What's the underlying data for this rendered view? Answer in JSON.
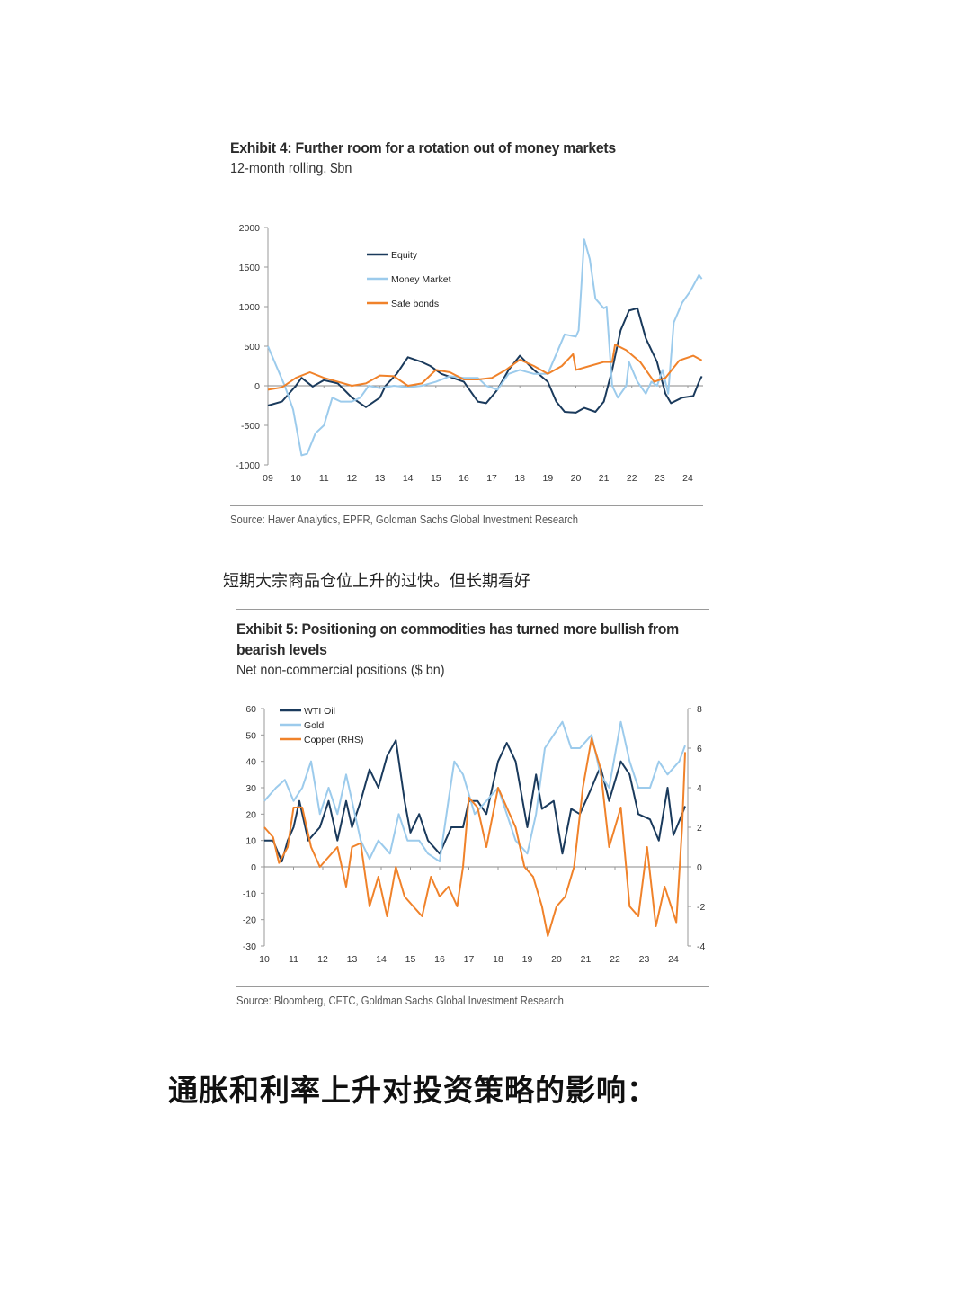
{
  "exhibit4": {
    "title": "Exhibit 4: Further room for a rotation out of money markets",
    "subtitle": "12-month rolling, $bn",
    "source": "Source: Haver Analytics, EPFR, Goldman Sachs Global Investment Research"
  },
  "between_text": "短期大宗商品仓位上升的过快。但长期看好",
  "exhibit5": {
    "title_line1": "Exhibit 5: Positioning on commodities has turned more bullish from",
    "title_line2": "bearish levels",
    "subtitle": "Net non-commercial positions ($ bn)",
    "source": "Source: Bloomberg, CFTC, Goldman Sachs Global Investment Research"
  },
  "heading": "通胀和利率上升对投资策略的影响：",
  "chart_data": [
    {
      "type": "line",
      "title": "Exhibit 4: Further room for a rotation out of money markets",
      "ylim": [
        -1000,
        2000
      ],
      "yticks": [
        "2000",
        "1500",
        "1000",
        "500",
        "0",
        "-500",
        "-1000"
      ],
      "ytick_values": [
        2000,
        1500,
        1000,
        500,
        0,
        -500,
        -1000
      ],
      "xticks": [
        "09",
        "10",
        "11",
        "12",
        "13",
        "14",
        "15",
        "16",
        "17",
        "18",
        "19",
        "20",
        "21",
        "22",
        "23",
        "24"
      ],
      "xlim": [
        2009,
        2024
      ],
      "grid": false,
      "legend_placement": "top-left",
      "series": [
        {
          "name": "Equity",
          "color": "#1a3a5c",
          "x": [
            2009,
            2009.5,
            2010,
            2010.2,
            2010.6,
            2011,
            2011.5,
            2012,
            2012.5,
            2013,
            2013.2,
            2013.6,
            2014,
            2014.5,
            2014.8,
            2015.2,
            2015.6,
            2016,
            2016.5,
            2016.8,
            2017.2,
            2017.6,
            2018,
            2018.5,
            2019,
            2019.3,
            2019.6,
            2020,
            2020.3,
            2020.7,
            2021,
            2021.3,
            2021.6,
            2021.9,
            2022.2,
            2022.5,
            2022.9,
            2023.2,
            2023.4,
            2023.8,
            2024.2,
            2024.4,
            2024.5
          ],
          "y": [
            -250,
            -200,
            0,
            100,
            -10,
            70,
            30,
            -150,
            -270,
            -150,
            0,
            150,
            360,
            300,
            250,
            150,
            100,
            50,
            -200,
            -220,
            -50,
            200,
            380,
            200,
            50,
            -200,
            -330,
            -340,
            -280,
            -330,
            -200,
            200,
            700,
            950,
            980,
            600,
            300,
            -100,
            -220,
            -150,
            -130,
            50,
            120
          ]
        },
        {
          "name": "Money Market",
          "color": "#9ccbec",
          "x": [
            2009,
            2009.3,
            2009.6,
            2009.9,
            2010.2,
            2010.4,
            2010.7,
            2011,
            2011.3,
            2011.6,
            2012,
            2012.3,
            2012.6,
            2013,
            2013.5,
            2014,
            2014.5,
            2015,
            2015.5,
            2016,
            2016.5,
            2016.8,
            2017.2,
            2017.6,
            2018,
            2018.5,
            2019,
            2019.3,
            2019.6,
            2020,
            2020.1,
            2020.3,
            2020.5,
            2020.7,
            2021,
            2021.1,
            2021.3,
            2021.5,
            2021.8,
            2021.9,
            2022.2,
            2022.5,
            2022.7,
            2022.9,
            2023.1,
            2023.3,
            2023.5,
            2023.8,
            2024.1,
            2024.4,
            2024.5
          ],
          "y": [
            500,
            250,
            0,
            -300,
            -880,
            -860,
            -600,
            -500,
            -150,
            -200,
            -200,
            -150,
            0,
            -30,
            0,
            -20,
            0,
            50,
            120,
            100,
            100,
            0,
            -50,
            150,
            200,
            150,
            150,
            400,
            650,
            620,
            700,
            1850,
            1600,
            1100,
            980,
            1000,
            0,
            -150,
            0,
            300,
            50,
            -100,
            50,
            0,
            200,
            -100,
            800,
            1050,
            1200,
            1400,
            1350
          ]
        },
        {
          "name": "Safe bonds",
          "color": "#f0822a",
          "x": [
            2009,
            2009.5,
            2010,
            2010.5,
            2011,
            2011.5,
            2012,
            2012.5,
            2013,
            2013.5,
            2014,
            2014.5,
            2015,
            2015.5,
            2016,
            2016.5,
            2017,
            2017.5,
            2018,
            2018.5,
            2019,
            2019.5,
            2019.9,
            2020,
            2020.5,
            2021,
            2021.3,
            2021.4,
            2021.8,
            2022.3,
            2022.8,
            2023.2,
            2023.7,
            2024.2,
            2024.5
          ],
          "y": [
            -50,
            -20,
            100,
            170,
            100,
            50,
            0,
            30,
            130,
            120,
            0,
            30,
            200,
            170,
            80,
            80,
            100,
            200,
            330,
            250,
            150,
            250,
            400,
            200,
            250,
            300,
            300,
            520,
            450,
            300,
            50,
            100,
            320,
            380,
            320
          ]
        }
      ]
    },
    {
      "type": "line",
      "title": "Exhibit 5: Positioning on commodities has turned more bullish from bearish levels",
      "ylim": [
        -30,
        60
      ],
      "y2lim": [
        -4,
        8
      ],
      "yticks": [
        "60",
        "50",
        "40",
        "30",
        "20",
        "10",
        "0",
        "-10",
        "-20",
        "-30"
      ],
      "ytick_values": [
        60,
        50,
        40,
        30,
        20,
        10,
        0,
        -10,
        -20,
        -30
      ],
      "y2ticks": [
        "8",
        "6",
        "4",
        "2",
        "0",
        "-2",
        "-4"
      ],
      "y2tick_values": [
        8,
        6,
        4,
        2,
        0,
        -2,
        -4
      ],
      "xticks": [
        "10",
        "11",
        "12",
        "13",
        "14",
        "15",
        "16",
        "17",
        "18",
        "19",
        "20",
        "21",
        "22",
        "23",
        "24"
      ],
      "xlim": [
        2010,
        2024
      ],
      "grid": false,
      "legend_placement": "top-left",
      "series": [
        {
          "name": "WTI Oil",
          "color": "#1a3a5c",
          "axis": "left",
          "x": [
            2010,
            2010.3,
            2010.6,
            2010.8,
            2011,
            2011.2,
            2011.5,
            2011.9,
            2012.2,
            2012.5,
            2012.8,
            2013,
            2013.3,
            2013.6,
            2013.9,
            2014.2,
            2014.5,
            2014.8,
            2015,
            2015.3,
            2015.6,
            2016,
            2016.4,
            2016.8,
            2017,
            2017.3,
            2017.6,
            2018,
            2018.3,
            2018.6,
            2019,
            2019.3,
            2019.5,
            2019.9,
            2020.2,
            2020.5,
            2020.8,
            2021.2,
            2021.5,
            2021.8,
            2022.2,
            2022.5,
            2022.8,
            2023.2,
            2023.5,
            2023.8,
            2024,
            2024.3,
            2024.4
          ],
          "y": [
            10,
            10,
            2,
            10,
            15,
            25,
            10,
            15,
            25,
            10,
            25,
            15,
            25,
            37,
            30,
            42,
            48,
            25,
            13,
            20,
            10,
            5,
            15,
            15,
            25,
            25,
            20,
            40,
            47,
            40,
            15,
            35,
            22,
            25,
            5,
            22,
            20,
            30,
            38,
            25,
            40,
            35,
            20,
            18,
            10,
            30,
            12,
            20,
            23
          ]
        },
        {
          "name": "Gold",
          "color": "#9ccbec",
          "axis": "left",
          "x": [
            2010,
            2010.4,
            2010.7,
            2011,
            2011.3,
            2011.6,
            2011.9,
            2012.2,
            2012.5,
            2012.8,
            2013,
            2013.3,
            2013.6,
            2013.9,
            2014.3,
            2014.6,
            2014.9,
            2015.3,
            2015.6,
            2016,
            2016.3,
            2016.5,
            2016.8,
            2017.2,
            2017.6,
            2018,
            2018.3,
            2018.6,
            2019,
            2019.3,
            2019.6,
            2019.9,
            2020.2,
            2020.5,
            2020.8,
            2021.2,
            2021.5,
            2021.8,
            2022.2,
            2022.5,
            2022.8,
            2023.2,
            2023.5,
            2023.8,
            2024.2,
            2024.4
          ],
          "y": [
            25,
            30,
            33,
            25,
            30,
            40,
            20,
            30,
            20,
            35,
            25,
            10,
            3,
            10,
            5,
            20,
            10,
            10,
            5,
            2,
            25,
            40,
            35,
            20,
            25,
            30,
            20,
            10,
            5,
            20,
            45,
            50,
            55,
            45,
            45,
            50,
            35,
            30,
            55,
            40,
            30,
            30,
            40,
            35,
            40,
            46
          ]
        },
        {
          "name": "Copper (RHS)",
          "color": "#f0822a",
          "axis": "right",
          "x": [
            2010,
            2010.3,
            2010.5,
            2010.8,
            2011,
            2011.3,
            2011.6,
            2011.9,
            2012.2,
            2012.5,
            2012.8,
            2013,
            2013.3,
            2013.6,
            2013.9,
            2014.2,
            2014.5,
            2014.8,
            2015.1,
            2015.4,
            2015.7,
            2016,
            2016.3,
            2016.6,
            2016.8,
            2017,
            2017.3,
            2017.6,
            2018,
            2018.3,
            2018.6,
            2018.9,
            2019.2,
            2019.5,
            2019.7,
            2020,
            2020.3,
            2020.6,
            2020.9,
            2021.2,
            2021.5,
            2021.8,
            2022.2,
            2022.5,
            2022.8,
            2023.1,
            2023.4,
            2023.7,
            2024.1,
            2024.3,
            2024.4
          ],
          "y": [
            2,
            1.5,
            0.2,
            1,
            3,
            3,
            1,
            0,
            0.5,
            1,
            -1,
            1,
            1.2,
            -2,
            -0.5,
            -2.5,
            0,
            -1.5,
            -2,
            -2.5,
            -0.5,
            -1.5,
            -1,
            -2,
            0,
            3.5,
            3,
            1,
            4,
            3,
            2,
            0,
            -0.5,
            -2,
            -3.5,
            -2,
            -1.5,
            0,
            4,
            6.5,
            5,
            1,
            3,
            -2,
            -2.5,
            1,
            -3,
            -1,
            -2.8,
            2,
            5.8
          ]
        }
      ]
    }
  ]
}
